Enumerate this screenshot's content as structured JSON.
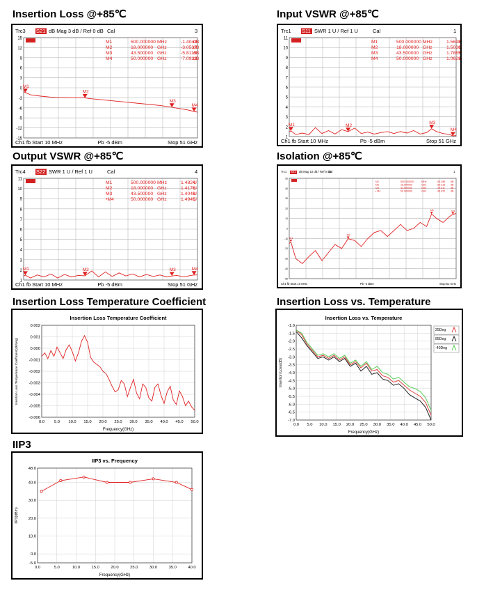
{
  "colors": {
    "trace": "#e02020",
    "grid": "#b8b8b8",
    "marker_fill": "#e02020",
    "badge_bg": "#d42020",
    "series_250": "#e04040",
    "series_85": "#222222",
    "series_m40": "#55cc55"
  },
  "sections": {
    "il_title": "Insertion Loss @+85℃",
    "ivswr_title": "Input VSWR @+85℃",
    "ovswr_title": "Output VSWR @+85℃",
    "iso_title": "Isolation @+85℃",
    "iltc_title": "Insertion Loss Temperature Coefficient",
    "ilvt_title": "Insertion Loss vs. Temperature",
    "iip3_title": "IIP3"
  },
  "vna_plots": [
    {
      "trace_id": "Trc3",
      "param": "S21",
      "format": "dB Mag",
      "scale": "3 dB /",
      "ref": "Ref 0 dB",
      "cal": "Cal",
      "channel_num": "3",
      "badge": "▬",
      "y_ticks": [
        "15",
        "12",
        "9",
        "6",
        "3",
        "0",
        "-3",
        "-6",
        "-9",
        "-12",
        "-15"
      ],
      "markers": [
        {
          "name": "M1",
          "freq": "500.000000",
          "unit": "MHz",
          "value": "-1.4042",
          "vunit": "dB"
        },
        {
          "name": "M2",
          "freq": "18.000000",
          "unit": "GHz",
          "value": "-3.0537",
          "vunit": "dB"
        },
        {
          "name": "M3",
          "freq": "43.500000",
          "unit": "GHz",
          "value": "-5.8115",
          "vunit": "dB"
        },
        {
          "name": "M4",
          "freq": "50.000000",
          "unit": "GHz",
          "value": "-7.0922",
          "vunit": "dB"
        }
      ],
      "footer_left": "Ch1  fb  Start  10 MHz",
      "footer_mid": "Pb  -5 dBm",
      "footer_right": "Stop  51 GHz"
    },
    {
      "trace_id": "Trc1",
      "param": "S11",
      "format": "SWR",
      "scale": "1 U /",
      "ref": "Ref 1 U",
      "cal": "Cal",
      "channel_num": "1",
      "badge": "▬",
      "y_ticks": [
        "11",
        "10",
        "9",
        "8",
        "7",
        "6",
        "5",
        "4",
        "3",
        "2",
        "1"
      ],
      "markers": [
        {
          "name": "M1",
          "freq": "500.000000",
          "unit": "MHz",
          "value": "1.5698",
          "vunit": "U"
        },
        {
          "name": "M2",
          "freq": "18.000000",
          "unit": "GHz",
          "value": "1.5036",
          "vunit": "U"
        },
        {
          "name": "M3",
          "freq": "43.500000",
          "unit": "GHz",
          "value": "1.7865",
          "vunit": "U"
        },
        {
          "name": "M4",
          "freq": "50.000000",
          "unit": "GHz",
          "value": "1.0629",
          "vunit": "U"
        }
      ],
      "footer_left": "Ch1  fb  Start  10 MHz",
      "footer_mid": "Pb  -5 dBm",
      "footer_right": "Stop  51 GHz"
    },
    {
      "trace_id": "Trc4",
      "param": "S22",
      "format": "SWR",
      "scale": "1 U /",
      "ref": "Ref 1 U",
      "cal": "Cal",
      "channel_num": "4",
      "badge": "▬",
      "y_ticks": [
        "11",
        "10",
        "9",
        "8",
        "7",
        "6",
        "5",
        "4",
        "3",
        "2",
        "1"
      ],
      "markers": [
        {
          "name": "M1",
          "freq": "500.000000",
          "unit": "MHz",
          "value": "1.4824",
          "vunit": "U"
        },
        {
          "name": "M2",
          "freq": "18.000000",
          "unit": "GHz",
          "value": "1.4176",
          "vunit": "U"
        },
        {
          "name": "M3",
          "freq": "43.500000",
          "unit": "GHz",
          "value": "1.4048",
          "vunit": "U"
        },
        {
          "name": "•M4",
          "freq": "50.000000",
          "unit": "GHz",
          "value": "1.4945",
          "vunit": "U"
        }
      ],
      "footer_left": "Ch1  fb  Start  10 MHz",
      "footer_mid": "Pb  -5 dBm",
      "footer_right": "Stop  51 GHz"
    },
    {
      "trace_id": "Trc1",
      "param": "S21",
      "format": "dB Mag",
      "scale": "10 dB /",
      "ref": "Ref 0 dB",
      "cal": "Cal",
      "channel_num": "1",
      "badge": "▬",
      "y_ticks": [
        "50",
        "40",
        "30",
        "20",
        "10",
        "0",
        "-10",
        "-20",
        "-30",
        "-40",
        "-50"
      ],
      "markers": [
        {
          "name": "M1",
          "freq": "500.000000",
          "unit": "MHz",
          "value": "-63.286",
          "vunit": "dB"
        },
        {
          "name": "M2",
          "freq": "18.000000",
          "unit": "GHz",
          "value": "-60.218",
          "vunit": "dB"
        },
        {
          "name": "M3",
          "freq": "43.500000",
          "unit": "GHz",
          "value": "-35.511",
          "vunit": "dB"
        },
        {
          "name": "• M4",
          "freq": "50.000000",
          "unit": "GHz",
          "value": "-36.032",
          "vunit": "dB"
        }
      ],
      "footer_left": "Ch1  fb  Start  10 MHz",
      "footer_mid": "Pb  -5 dBm",
      "footer_right": "Stop  51 GHz"
    }
  ],
  "chart_data": [
    {
      "type": "line",
      "panel": "il",
      "x_range_ghz": [
        0.01,
        51
      ],
      "ylim": [
        -15,
        15
      ],
      "x": [
        0.01,
        2,
        5,
        8,
        10,
        15,
        18,
        20,
        25,
        30,
        35,
        40,
        43.5,
        45,
        48,
        50,
        51
      ],
      "y": [
        -1.2,
        -2.1,
        -2.5,
        -2.8,
        -2.9,
        -3.0,
        -3.05,
        -3.3,
        -3.8,
        -4.3,
        -4.8,
        -5.3,
        -5.8,
        -6.1,
        -6.6,
        -7.09,
        -7.3
      ],
      "marker_x": [
        0.5,
        18,
        43.5,
        50
      ]
    },
    {
      "type": "line",
      "panel": "ivswr",
      "x_range_ghz": [
        0.01,
        51
      ],
      "ylim": [
        1,
        11
      ],
      "x": [
        0.01,
        0.5,
        2,
        4,
        6,
        8,
        10,
        12,
        14,
        16,
        18,
        20,
        22,
        24,
        26,
        28,
        30,
        32,
        34,
        36,
        38,
        40,
        42,
        43.5,
        45,
        47,
        49,
        50,
        51
      ],
      "y": [
        1.5,
        1.57,
        1.2,
        1.35,
        1.2,
        1.9,
        1.3,
        1.6,
        1.25,
        1.7,
        1.5,
        1.85,
        1.3,
        1.45,
        1.25,
        1.4,
        1.5,
        1.3,
        1.5,
        1.35,
        1.6,
        1.25,
        1.4,
        1.79,
        1.5,
        1.3,
        1.2,
        1.06,
        1.1
      ],
      "marker_x": [
        0.5,
        18,
        43.5,
        50
      ]
    },
    {
      "type": "line",
      "panel": "ovswr",
      "x_range_ghz": [
        0.01,
        51
      ],
      "ylim": [
        1,
        11
      ],
      "x": [
        0.01,
        0.5,
        2,
        4,
        6,
        8,
        10,
        12,
        14,
        16,
        18,
        20,
        22,
        24,
        26,
        28,
        30,
        32,
        34,
        36,
        38,
        40,
        42,
        43.5,
        45,
        47,
        49,
        50,
        51
      ],
      "y": [
        1.4,
        1.48,
        1.2,
        1.5,
        1.3,
        1.6,
        1.2,
        1.55,
        1.3,
        1.45,
        1.42,
        1.9,
        1.3,
        1.8,
        1.35,
        1.7,
        1.4,
        1.6,
        1.3,
        1.55,
        1.35,
        1.5,
        1.3,
        1.4,
        1.45,
        1.3,
        1.45,
        1.49,
        1.5
      ],
      "marker_x": [
        0.5,
        18,
        43.5,
        50
      ]
    },
    {
      "type": "line",
      "panel": "iso",
      "x_range_ghz": [
        0.01,
        51
      ],
      "ylim": [
        -100,
        0
      ],
      "x": [
        0.01,
        0.5,
        2,
        4,
        6,
        8,
        10,
        12,
        14,
        16,
        18,
        20,
        22,
        24,
        26,
        28,
        30,
        32,
        34,
        36,
        38,
        40,
        42,
        43.5,
        45,
        47,
        49,
        50,
        51
      ],
      "y": [
        -65,
        -63.3,
        -80,
        -85,
        -78,
        -72,
        -82,
        -74,
        -66,
        -70,
        -60.2,
        -62,
        -68,
        -60,
        -54,
        -52,
        -58,
        -52,
        -46,
        -52,
        -50,
        -44,
        -48,
        -35.5,
        -40,
        -44,
        -38,
        -36,
        -35
      ],
      "marker_x": [
        0.5,
        18,
        43.5,
        50
      ]
    },
    {
      "type": "line",
      "panel": "iltc",
      "title": "Insertion Loss Temperature Coefficient",
      "xlabel": "Frequency(GHz)",
      "ylabel": "Insertion Loss Temperature Coefficient(dB/deg)",
      "xlim": [
        0,
        50
      ],
      "ylim": [
        -0.006,
        0.002
      ],
      "x_ticks": [
        "0.0",
        "5.0",
        "10.0",
        "15.0",
        "20.0",
        "25.0",
        "30.0",
        "35.0",
        "40.0",
        "45.0",
        "50.0"
      ],
      "y_ticks": [
        "0.002",
        "0.001",
        "0.000",
        "-0.001",
        "-0.002",
        "-0.003",
        "-0.004",
        "-0.005",
        "-0.006"
      ],
      "x": [
        0,
        1,
        2,
        3,
        4,
        5,
        6,
        7,
        8,
        9,
        10,
        11,
        12,
        13,
        14,
        15,
        16,
        17,
        18,
        19,
        20,
        21,
        22,
        23,
        24,
        25,
        26,
        27,
        28,
        29,
        30,
        31,
        32,
        33,
        34,
        35,
        36,
        37,
        38,
        39,
        40,
        41,
        42,
        43,
        44,
        45,
        46,
        47,
        48,
        49,
        50
      ],
      "y": [
        -0.0007,
        -0.0004,
        -0.0009,
        -0.0002,
        -0.0007,
        0.0001,
        -0.0004,
        -0.0009,
        -0.0001,
        0.0003,
        -0.0003,
        -0.0011,
        -0.0004,
        0.0006,
        0.0011,
        0.0005,
        -0.0008,
        -0.0012,
        -0.0014,
        -0.0016,
        -0.002,
        -0.0022,
        -0.0027,
        -0.0033,
        -0.0038,
        -0.0036,
        -0.0028,
        -0.0031,
        -0.0042,
        -0.0034,
        -0.0027,
        -0.0039,
        -0.0044,
        -0.0031,
        -0.0034,
        -0.0043,
        -0.0046,
        -0.0034,
        -0.0031,
        -0.0041,
        -0.0048,
        -0.0038,
        -0.0033,
        -0.0045,
        -0.0049,
        -0.0037,
        -0.0042,
        -0.005,
        -0.0046,
        -0.0051,
        -0.0054
      ]
    },
    {
      "type": "line",
      "panel": "ilvt",
      "title": "Insertion Loss vs. Temperature",
      "xlabel": "Frequency(GHz)",
      "ylabel": "Insertion Loss(dB)",
      "xlim": [
        0,
        50
      ],
      "ylim": [
        -7.0,
        -1.0
      ],
      "x_ticks": [
        "0.0",
        "5.0",
        "10.0",
        "15.0",
        "20.0",
        "25.0",
        "30.0",
        "35.0",
        "40.0",
        "45.0",
        "50.0"
      ],
      "y_ticks": [
        "-1.0",
        "-1.5",
        "-2.0",
        "-2.5",
        "-3.0",
        "-3.5",
        "-4.0",
        "-4.5",
        "-5.0",
        "-5.5",
        "-6.0",
        "-6.5",
        "-7.0"
      ],
      "legend_position": "top-right",
      "x": [
        0,
        2,
        4,
        6,
        8,
        10,
        12,
        14,
        16,
        18,
        20,
        22,
        24,
        26,
        28,
        30,
        32,
        34,
        36,
        38,
        40,
        42,
        44,
        46,
        48,
        50
      ],
      "series": [
        {
          "name": "25Deg",
          "color_key": "series_250",
          "values": [
            -1.3,
            -1.6,
            -2.2,
            -2.6,
            -3.0,
            -2.9,
            -3.1,
            -2.9,
            -3.2,
            -3.0,
            -3.5,
            -3.3,
            -3.7,
            -3.4,
            -3.9,
            -3.8,
            -4.2,
            -4.3,
            -4.6,
            -4.5,
            -4.8,
            -5.1,
            -5.3,
            -5.5,
            -5.9,
            -6.7
          ]
        },
        {
          "name": "85Deg",
          "color_key": "series_85",
          "values": [
            -1.4,
            -1.8,
            -2.3,
            -2.7,
            -3.1,
            -3.0,
            -3.2,
            -3.0,
            -3.3,
            -3.1,
            -3.6,
            -3.4,
            -3.9,
            -3.6,
            -4.1,
            -4.0,
            -4.4,
            -4.5,
            -4.8,
            -4.7,
            -5.0,
            -5.4,
            -5.6,
            -5.8,
            -6.2,
            -7.0
          ]
        },
        {
          "name": "-40Deg",
          "color_key": "series_m40",
          "values": [
            -1.3,
            -1.5,
            -2.1,
            -2.5,
            -2.9,
            -2.8,
            -3.0,
            -2.8,
            -3.1,
            -2.9,
            -3.4,
            -3.2,
            -3.6,
            -3.3,
            -3.8,
            -3.6,
            -4.0,
            -4.1,
            -4.4,
            -4.3,
            -4.6,
            -4.9,
            -5.0,
            -5.2,
            -5.6,
            -6.4
          ]
        }
      ]
    },
    {
      "type": "line",
      "panel": "iip3",
      "title": "IIP3 vs. Frequency",
      "xlabel": "Frequency(GHz)",
      "ylabel": "IIP3(dBm)",
      "xlim": [
        0,
        40
      ],
      "ylim": [
        -5,
        48
      ],
      "x_ticks": [
        "0.0",
        "5.0",
        "10.0",
        "15.0",
        "20.0",
        "25.0",
        "30.0",
        "35.0",
        "40.0"
      ],
      "y_ticks": [
        "48.0",
        "40.0",
        "30.0",
        "20.0",
        "10.0",
        "0.0",
        "-5.0"
      ],
      "x": [
        1,
        6,
        12,
        18,
        24,
        30,
        36,
        40
      ],
      "y": [
        35,
        41,
        43,
        40,
        40,
        42,
        40,
        36
      ]
    }
  ]
}
